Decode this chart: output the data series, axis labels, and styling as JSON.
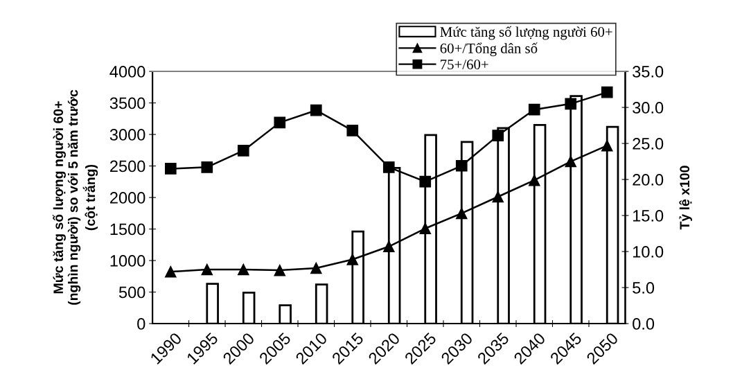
{
  "chart_data": {
    "type": "bar",
    "categories": [
      "1990",
      "1995",
      "2000",
      "2005",
      "2010",
      "2015",
      "2020",
      "2025",
      "2030",
      "2035",
      "2040",
      "2045",
      "2050"
    ],
    "ylabel": "Mức tăng số lượng người 60+\n(nghìn người) so với 5 năm trước\n(cột trắng)",
    "y2label": "Tỷ lệ x100",
    "ylim": [
      0,
      4000
    ],
    "yticks": [
      0,
      500,
      1000,
      1500,
      2000,
      2500,
      3000,
      3500,
      4000
    ],
    "y2lim": [
      0,
      35
    ],
    "y2ticks": [
      {
        "value": 0,
        "label": "0.0"
      },
      {
        "value": 5,
        "label": "5.0"
      },
      {
        "value": 10,
        "label": "10.0"
      },
      {
        "value": 15,
        "label": "15.0"
      },
      {
        "value": 20,
        "label": "20.0"
      },
      {
        "value": 25,
        "label": "25.0"
      },
      {
        "value": 30,
        "label": "30.0"
      },
      {
        "value": 35,
        "label": "35.0"
      }
    ],
    "grid": false,
    "legend": "top right",
    "series": [
      {
        "name": "Mức tăng số lượng người 60+",
        "color": "#ffffff",
        "values": [
          null,
          630,
          490,
          290,
          620,
          1460,
          2470,
          2990,
          2880,
          3100,
          3150,
          3610,
          3120
        ]
      },
      {
        "name": "60+/Tổng dân số",
        "type": "line",
        "axis": "y2",
        "color": "#000000",
        "marker": "triangle",
        "values": [
          7.2,
          7.5,
          7.5,
          7.4,
          7.7,
          8.9,
          10.7,
          13.2,
          15.3,
          17.6,
          19.9,
          22.5,
          24.7
        ]
      },
      {
        "name": "75+/60+",
        "type": "line",
        "axis": "y2",
        "color": "#000000",
        "marker": "square",
        "values": [
          21.5,
          21.7,
          24.0,
          27.9,
          29.6,
          26.8,
          21.7,
          19.7,
          21.9,
          26.1,
          29.7,
          30.5,
          32.1
        ]
      }
    ]
  }
}
